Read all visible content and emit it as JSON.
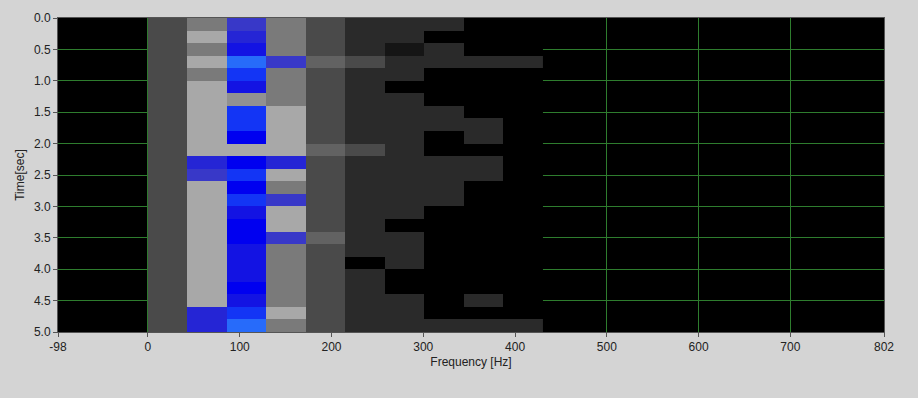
{
  "chart_data": {
    "type": "heatmap",
    "x_label": "Frequency [Hz]",
    "y_label": "Time[sec]",
    "x": [
      21.5,
      64.5,
      107.5,
      150.5,
      193.5,
      236.5,
      279.5,
      322.5,
      365.5,
      408.5
    ],
    "y": [
      0.1,
      0.3,
      0.5,
      0.7,
      0.9,
      1.1,
      1.3,
      1.5,
      1.7,
      1.9,
      2.1,
      2.3,
      2.5,
      2.7,
      2.9,
      3.1,
      3.3,
      3.5,
      3.7,
      3.9,
      4.1,
      4.3,
      4.5,
      4.7,
      4.9
    ],
    "z": [
      [
        3,
        5,
        7,
        5,
        3,
        2,
        2,
        2,
        0,
        0
      ],
      [
        3,
        6,
        7.5,
        5,
        3,
        2,
        2,
        0,
        0,
        0
      ],
      [
        3,
        5,
        8,
        5,
        3,
        2,
        1,
        2,
        0,
        0
      ],
      [
        3,
        6,
        9.5,
        7,
        4,
        3,
        2,
        2,
        2,
        2
      ],
      [
        3,
        5,
        9,
        5,
        3,
        2,
        2,
        0,
        0,
        0
      ],
      [
        3,
        6,
        8,
        5,
        3,
        2,
        0,
        0,
        0,
        0
      ],
      [
        3,
        6,
        5.5,
        5,
        3,
        2,
        2,
        0,
        0,
        0
      ],
      [
        3,
        6,
        9,
        6,
        3,
        2,
        2,
        2,
        0,
        0
      ],
      [
        3,
        6,
        9,
        6,
        3,
        2,
        2,
        2,
        2,
        0
      ],
      [
        3,
        6,
        8.5,
        6,
        3,
        2,
        2,
        0,
        2,
        0
      ],
      [
        3,
        6,
        6,
        6,
        4,
        3,
        2,
        0,
        0,
        0
      ],
      [
        3,
        7.5,
        8.5,
        7.5,
        3,
        2,
        2,
        2,
        2,
        0
      ],
      [
        3,
        7,
        9,
        6,
        3,
        2,
        2,
        2,
        2,
        0
      ],
      [
        3,
        6,
        8.5,
        5,
        3,
        2,
        2,
        2,
        0,
        0
      ],
      [
        3,
        6,
        9,
        7,
        3,
        2,
        2,
        2,
        0,
        0
      ],
      [
        3,
        6,
        8,
        6,
        3,
        2,
        2,
        0,
        0,
        0
      ],
      [
        3,
        6,
        8.5,
        6,
        3,
        2,
        0,
        0,
        0,
        0
      ],
      [
        3,
        6,
        8.5,
        7,
        4,
        2,
        2,
        0,
        0,
        0
      ],
      [
        3,
        6,
        8,
        5,
        3,
        2,
        2,
        0,
        0,
        0
      ],
      [
        3,
        6,
        8,
        5,
        3,
        0,
        2,
        0,
        0,
        0
      ],
      [
        3,
        6,
        8,
        5,
        3,
        2,
        0,
        0,
        0,
        0
      ],
      [
        3,
        6,
        8.5,
        5,
        3,
        2,
        0,
        0,
        0,
        0
      ],
      [
        3,
        6,
        8,
        5,
        3,
        2,
        2,
        0,
        2,
        0
      ],
      [
        3,
        7.5,
        9,
        6,
        3,
        2,
        2,
        0,
        0,
        0
      ],
      [
        3,
        7.5,
        9.5,
        5,
        3,
        2,
        2,
        2,
        2,
        2
      ]
    ],
    "zlim": [
      0,
      10
    ],
    "xlim": [
      -98,
      802
    ],
    "xticks": [
      -98,
      0,
      100,
      200,
      300,
      400,
      500,
      600,
      700,
      802
    ],
    "ylim": [
      5,
      0
    ],
    "yticks": [
      {
        "value": 0,
        "label": "0.0"
      },
      0.5,
      {
        "value": 1,
        "label": "1.0"
      },
      1.5,
      {
        "value": 2,
        "label": "2.0"
      },
      2.5,
      {
        "value": 3,
        "label": "3.0"
      },
      3.5,
      {
        "value": 4,
        "label": "4.0"
      },
      4.5,
      {
        "value": 5,
        "label": "5.0"
      }
    ],
    "grid": true
  }
}
